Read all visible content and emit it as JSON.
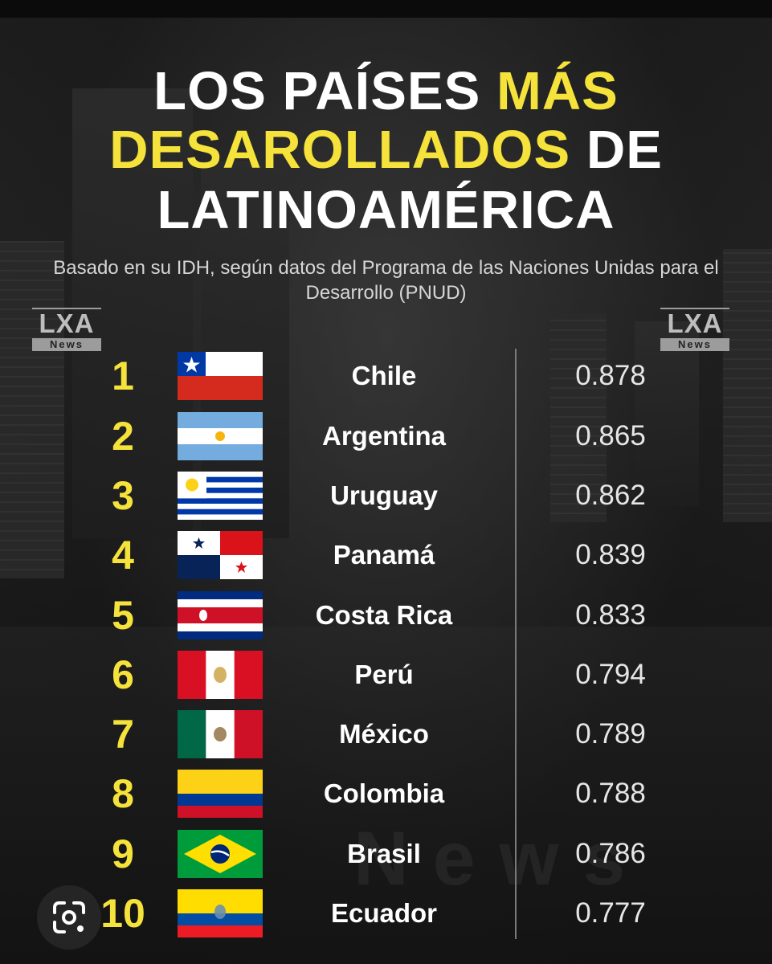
{
  "title": {
    "line1_white": "LOS PAÍSES",
    "line1_yellow": "MÁS",
    "line2_yellow": "DESAROLLADOS",
    "line2_white": "DE",
    "line3": "LATINOAMÉRICA"
  },
  "subtitle": "Basado en su IDH, según datos del Programa de las Naciones Unidas para el Desarrollo (PNUD)",
  "logo": {
    "top": "LXA",
    "bottom": "News"
  },
  "watermark": "News",
  "rows": [
    {
      "rank": "1",
      "country": "Chile",
      "idh": "0.878",
      "flag": "chile-flag"
    },
    {
      "rank": "2",
      "country": "Argentina",
      "idh": "0.865",
      "flag": "argentina-flag"
    },
    {
      "rank": "3",
      "country": "Uruguay",
      "idh": "0.862",
      "flag": "uruguay-flag"
    },
    {
      "rank": "4",
      "country": "Panamá",
      "idh": "0.839",
      "flag": "panama-flag"
    },
    {
      "rank": "5",
      "country": "Costa Rica",
      "idh": "0.833",
      "flag": "costa-rica-flag"
    },
    {
      "rank": "6",
      "country": "Perú",
      "idh": "0.794",
      "flag": "peru-flag"
    },
    {
      "rank": "7",
      "country": "México",
      "idh": "0.789",
      "flag": "mexico-flag"
    },
    {
      "rank": "8",
      "country": "Colombia",
      "idh": "0.788",
      "flag": "colombia-flag"
    },
    {
      "rank": "9",
      "country": "Brasil",
      "idh": "0.786",
      "flag": "brasil-flag"
    },
    {
      "rank": "10",
      "country": "Ecuador",
      "idh": "0.777",
      "flag": "ecuador-flag"
    }
  ],
  "colors": {
    "accent": "#f5e23a",
    "text": "#ffffff",
    "background": "#1a1a1a"
  },
  "overlay": {
    "icon": "visual-search-icon"
  }
}
